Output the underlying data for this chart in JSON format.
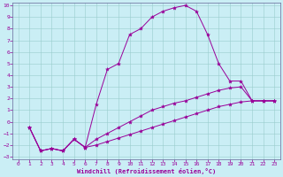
{
  "xlabel": "Windchill (Refroidissement éolien,°C)",
  "bg_color": "#caeef5",
  "line_color": "#990099",
  "grid_color": "#99cccc",
  "xlim": [
    -0.5,
    23.5
  ],
  "ylim": [
    -3.2,
    10.2
  ],
  "xticks": [
    0,
    1,
    2,
    3,
    4,
    5,
    6,
    7,
    8,
    9,
    10,
    11,
    12,
    13,
    14,
    15,
    16,
    17,
    18,
    19,
    20,
    21,
    22,
    23
  ],
  "yticks": [
    -3,
    -2,
    -1,
    0,
    1,
    2,
    3,
    4,
    5,
    6,
    7,
    8,
    9,
    10
  ],
  "series1_x": [
    1,
    2,
    3,
    4,
    5,
    6,
    7,
    8,
    9,
    10,
    11,
    12,
    13,
    14,
    15,
    16,
    17,
    18,
    19,
    20,
    21,
    22,
    23
  ],
  "series1_y": [
    -0.5,
    -2.5,
    -2.3,
    -2.5,
    -1.5,
    -2.2,
    1.5,
    4.5,
    5.0,
    7.5,
    8.0,
    9.0,
    9.5,
    9.8,
    10.0,
    9.5,
    7.5,
    5.0,
    3.5,
    3.5,
    1.8,
    1.8,
    1.8
  ],
  "series2_x": [
    1,
    2,
    3,
    4,
    5,
    6,
    7,
    8,
    9,
    10,
    11,
    12,
    13,
    14,
    15,
    16,
    17,
    18,
    19,
    20,
    21,
    22,
    23
  ],
  "series2_y": [
    -0.5,
    -2.5,
    -2.3,
    -2.5,
    -1.5,
    -2.2,
    -1.5,
    -1.0,
    -0.5,
    0.0,
    0.5,
    1.0,
    1.3,
    1.6,
    1.8,
    2.1,
    2.4,
    2.7,
    2.9,
    3.0,
    1.8,
    1.8,
    1.8
  ],
  "series3_x": [
    1,
    2,
    3,
    4,
    5,
    6,
    7,
    8,
    9,
    10,
    11,
    12,
    13,
    14,
    15,
    16,
    17,
    18,
    19,
    20,
    21,
    22,
    23
  ],
  "series3_y": [
    -0.5,
    -2.5,
    -2.3,
    -2.5,
    -1.5,
    -2.2,
    -2.0,
    -1.7,
    -1.4,
    -1.1,
    -0.8,
    -0.5,
    -0.2,
    0.1,
    0.4,
    0.7,
    1.0,
    1.3,
    1.5,
    1.7,
    1.8,
    1.8,
    1.8
  ]
}
